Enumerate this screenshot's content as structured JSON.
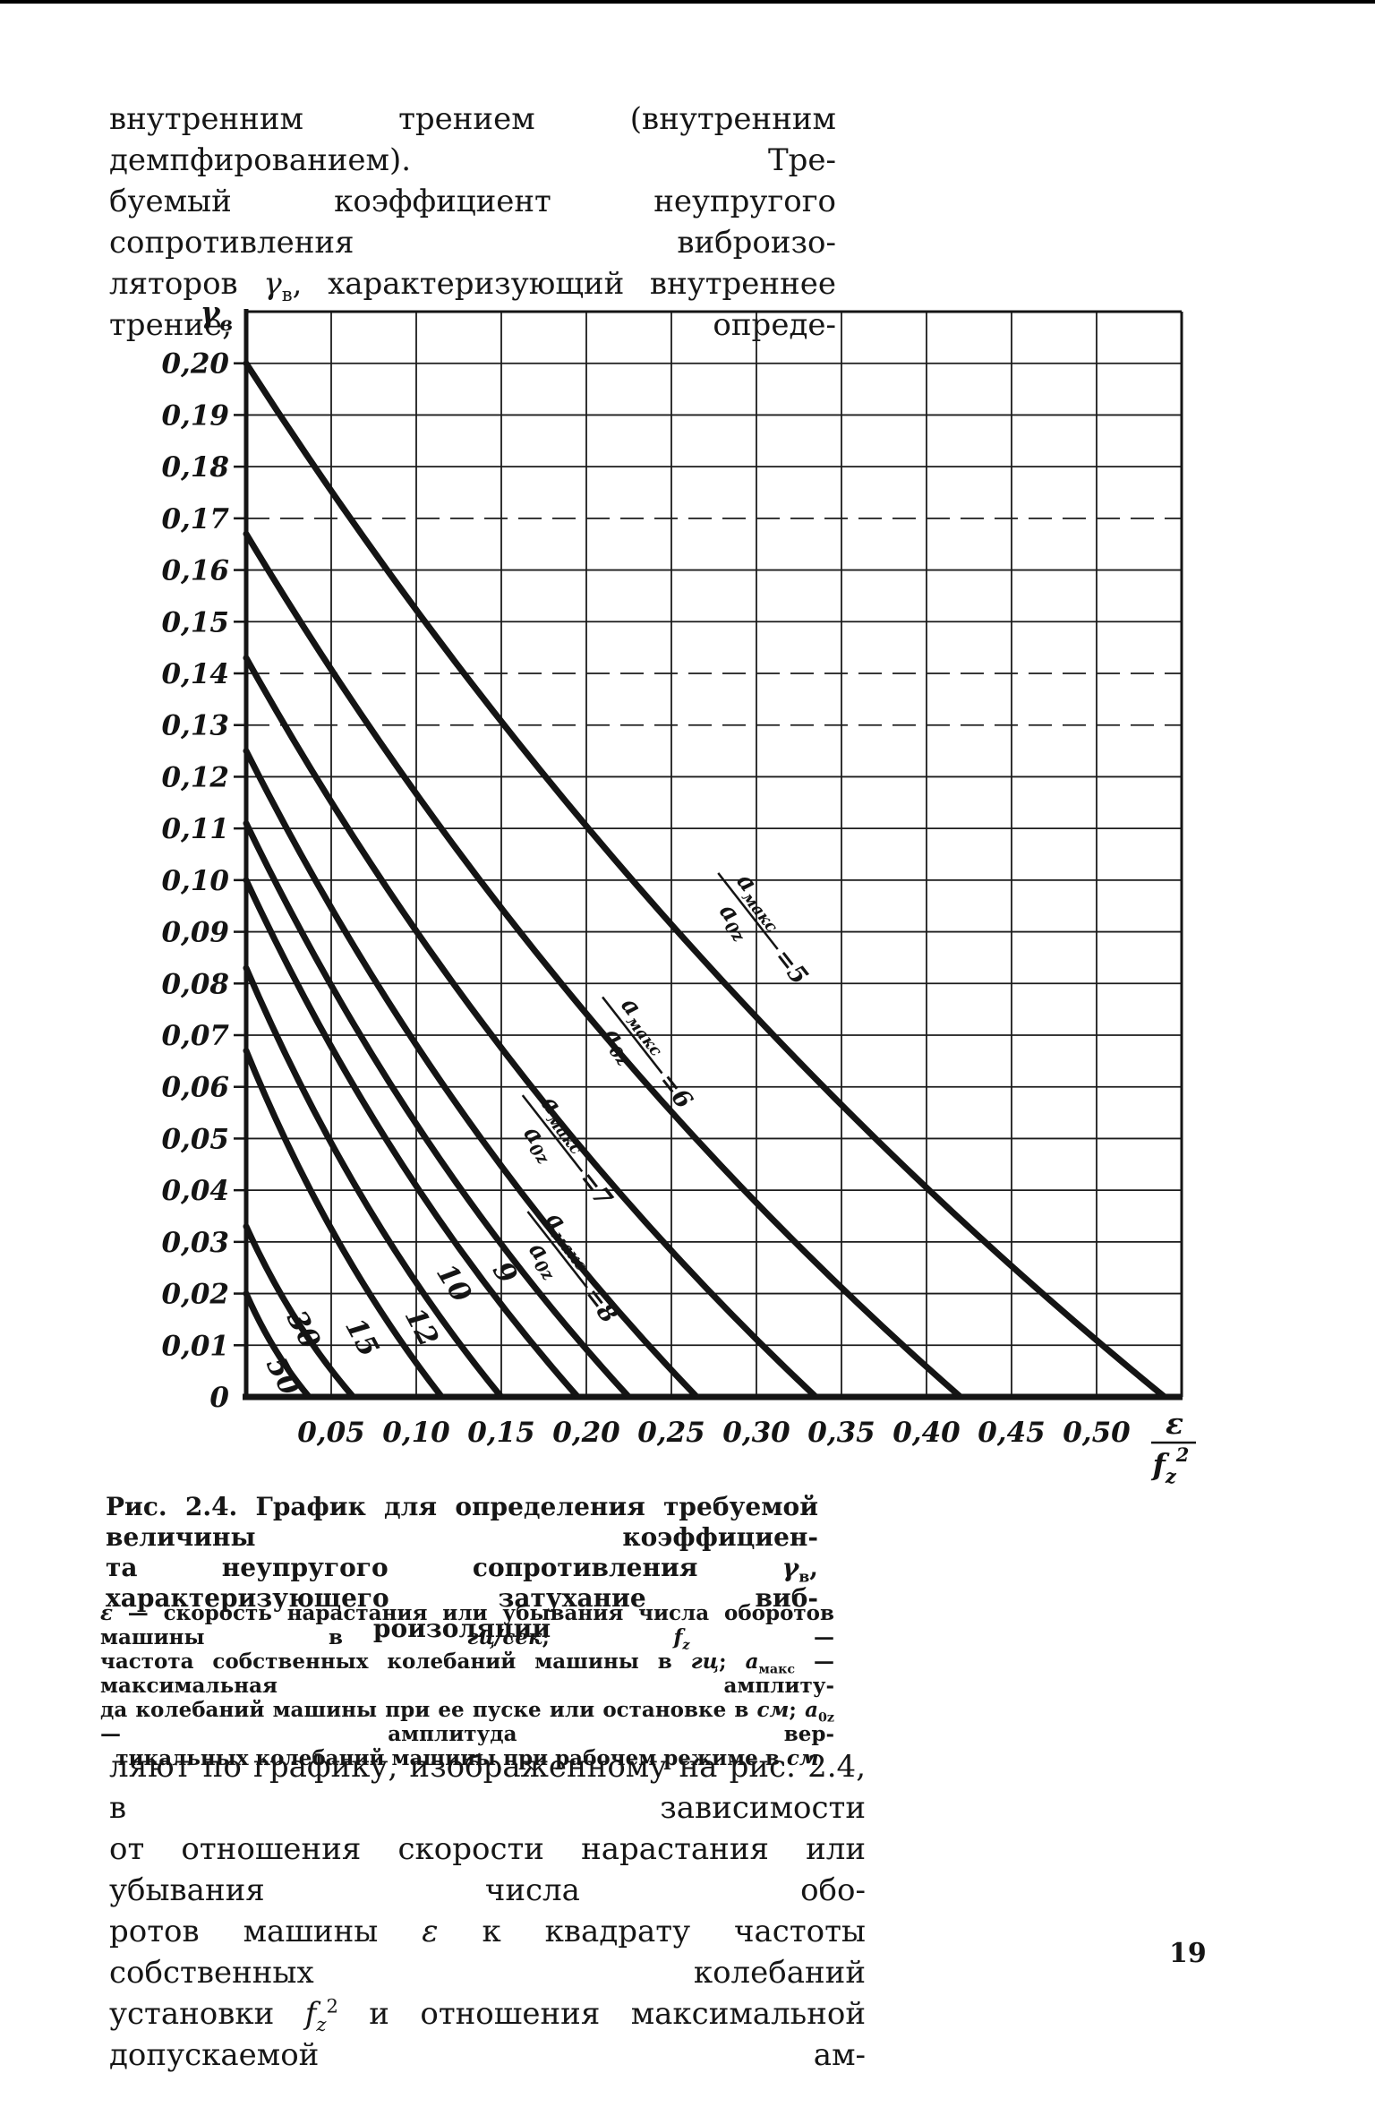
{
  "page": {
    "number": "19"
  },
  "paragraph_top": {
    "lines": [
      [
        {
          "t": "внутренним трением (внутренним демпфированием). Тре-"
        }
      ],
      [
        {
          "t": "буемый коэффициент неупругого сопротивления виброизо-"
        }
      ],
      [
        {
          "t": "ляторов "
        },
        {
          "t": "γ",
          "i": true
        },
        {
          "t": "в",
          "sub": true
        },
        {
          "t": ", характеризующий внутреннее трение, опреде-"
        }
      ]
    ]
  },
  "figure_caption": {
    "lines": [
      [
        {
          "t": "Рис. 2.4. График для определения требуемой величины коэффициен-"
        }
      ],
      [
        {
          "t": "та неупругого сопротивления "
        },
        {
          "t": "γ",
          "i": true
        },
        {
          "t": "в",
          "sub": true
        },
        {
          "t": ", характеризующего затухание виб-"
        }
      ],
      [
        {
          "t": "роизоляции"
        }
      ]
    ]
  },
  "figure_legend": {
    "lines": [
      [
        {
          "t": "ε",
          "i": true
        },
        {
          "t": " — скорость нарастания или убывания числа оборотов машины в "
        },
        {
          "t": "гц/сек",
          "i": true
        },
        {
          "t": "; "
        },
        {
          "t": "f",
          "i": true
        },
        {
          "t": "z",
          "sub": true,
          "i": true
        },
        {
          "t": " —"
        }
      ],
      [
        {
          "t": "частота собственных колебаний машины в "
        },
        {
          "t": "гц",
          "i": true
        },
        {
          "t": "; "
        },
        {
          "t": "а",
          "i": true
        },
        {
          "t": "макс",
          "sub": true
        },
        {
          "t": " — максимальная амплиту-"
        }
      ],
      [
        {
          "t": "да колебаний машины при ее пуске или остановке в "
        },
        {
          "t": "см",
          "i": true
        },
        {
          "t": "; "
        },
        {
          "t": "а",
          "i": true
        },
        {
          "t": "0z",
          "sub": true
        },
        {
          "t": " — амплитуда вер-"
        }
      ],
      [
        {
          "t": "тикальных колебаний машины при рабочем режиме в "
        },
        {
          "t": "см",
          "i": true
        }
      ]
    ]
  },
  "paragraph_bottom": {
    "lines": [
      [
        {
          "t": "ляют по графику, изображенному на рис. 2.4, в зависимости"
        }
      ],
      [
        {
          "t": "от отношения скорости нарастания или убывания числа обо-"
        }
      ],
      [
        {
          "t": "ротов машины "
        },
        {
          "t": "ε",
          "i": true
        },
        {
          "t": " к квадрату частоты собственных колебаний"
        }
      ],
      [
        {
          "t": "установки "
        },
        {
          "t": "f",
          "i": true
        },
        {
          "t": "z",
          "sub": true,
          "i": true
        },
        {
          "t": "2",
          "sup": true
        },
        {
          "t": " и отношения максимальной допускаемой ам-"
        }
      ]
    ]
  },
  "chart_data": {
    "type": "line",
    "title": "Рис. 2.4. График для определения требуемой величины коэффициента неупругого сопротивления γв",
    "ylabel": {
      "base": "γ",
      "sub": "в"
    },
    "xlabel": {
      "num": "ε",
      "den_base": "f",
      "den_sub": "z",
      "den_sup": "2"
    },
    "xlim": [
      0,
      0.55
    ],
    "ylim": [
      0,
      0.21
    ],
    "grid": true,
    "x_tick_values": [
      0.05,
      0.1,
      0.15,
      0.2,
      0.25,
      0.3,
      0.35,
      0.4,
      0.45,
      0.5
    ],
    "x_tick_labels": [
      "0,05",
      "0,10",
      "0,15",
      "0,20",
      "0,25",
      "0,30",
      "0,35",
      "0,40",
      "0,45",
      "0,50"
    ],
    "y_tick_values": [
      0.01,
      0.02,
      0.03,
      0.04,
      0.05,
      0.06,
      0.07,
      0.08,
      0.09,
      0.1,
      0.11,
      0.12,
      0.13,
      0.14,
      0.15,
      0.16,
      0.17,
      0.18,
      0.19,
      0.2
    ],
    "y_tick_labels": [
      "0,01",
      "0,02",
      "0,03",
      "0,04",
      "0,05",
      "0,06",
      "0,07",
      "0,08",
      "0,09",
      "0,10",
      "0,11",
      "0,12",
      "0,13",
      "0,14",
      "0,15",
      "0,16",
      "0,17",
      "0,18",
      "0,19",
      "0,20"
    ],
    "origin_label": "0",
    "dashed_y_gridlines": [
      0.13,
      0.14,
      0.17
    ],
    "series": [
      {
        "name": "амакс/а0z=5",
        "ratio": 5,
        "y_intercept": 0.2,
        "x_intercept": 0.54,
        "points": [
          [
            0,
            0.2
          ],
          [
            0.249,
            0.092
          ],
          [
            0.54,
            0
          ]
        ]
      },
      {
        "name": "амакс/а0z=6",
        "ratio": 6,
        "y_intercept": 0.167,
        "x_intercept": 0.42,
        "points": [
          [
            0,
            0.167
          ],
          [
            0.193,
            0.077
          ],
          [
            0.42,
            0
          ]
        ]
      },
      {
        "name": "амакс/а0z=7",
        "ratio": 7,
        "y_intercept": 0.143,
        "x_intercept": 0.335,
        "points": [
          [
            0,
            0.143
          ],
          [
            0.154,
            0.066
          ],
          [
            0.335,
            0
          ]
        ]
      },
      {
        "name": "амакс/а0z=8",
        "ratio": 8,
        "y_intercept": 0.125,
        "x_intercept": 0.265,
        "points": [
          [
            0,
            0.125
          ],
          [
            0.122,
            0.058
          ],
          [
            0.265,
            0
          ]
        ]
      },
      {
        "name": "амакс/а0z=9",
        "ratio": 9,
        "y_intercept": 0.111,
        "x_intercept": 0.225,
        "points": [
          [
            0,
            0.111
          ],
          [
            0.104,
            0.051
          ],
          [
            0.225,
            0
          ]
        ]
      },
      {
        "name": "амакс/а0z=10",
        "ratio": 10,
        "y_intercept": 0.1,
        "x_intercept": 0.195,
        "points": [
          [
            0,
            0.1
          ],
          [
            0.09,
            0.046
          ],
          [
            0.195,
            0
          ]
        ]
      },
      {
        "name": "амакс/а0z=12",
        "ratio": 12,
        "y_intercept": 0.083,
        "x_intercept": 0.15,
        "points": [
          [
            0,
            0.083
          ],
          [
            0.069,
            0.038
          ],
          [
            0.15,
            0
          ]
        ]
      },
      {
        "name": "амакс/а0z=15",
        "ratio": 15,
        "y_intercept": 0.067,
        "x_intercept": 0.115,
        "points": [
          [
            0,
            0.067
          ],
          [
            0.053,
            0.031
          ],
          [
            0.115,
            0
          ]
        ]
      },
      {
        "name": "амакс/а0z=30",
        "ratio": 30,
        "y_intercept": 0.033,
        "x_intercept": 0.063,
        "points": [
          [
            0,
            0.033
          ],
          [
            0.029,
            0.015
          ],
          [
            0.063,
            0
          ]
        ]
      },
      {
        "name": "амакс/а0z=50",
        "ratio": 50,
        "y_intercept": 0.02,
        "x_intercept": 0.037,
        "points": [
          [
            0,
            0.02
          ],
          [
            0.017,
            0.009
          ],
          [
            0.037,
            0
          ]
        ]
      }
    ],
    "curve_labels": [
      {
        "type": "fraction",
        "num_main": "а",
        "num_sub": "макс",
        "den_main": "а",
        "den_sub": "0z",
        "eq": "=5",
        "x": 0.295,
        "y": 0.094,
        "rot": 52
      },
      {
        "type": "fraction",
        "num_main": "а",
        "num_sub": "макс",
        "den_main": "а",
        "den_sub": "0z",
        "eq": "=6",
        "x": 0.227,
        "y": 0.07,
        "rot": 52
      },
      {
        "type": "fraction",
        "num_main": "а",
        "num_sub": "макс",
        "den_main": "а",
        "den_sub": "0z",
        "eq": "=7",
        "x": 0.18,
        "y": 0.051,
        "rot": 52
      },
      {
        "type": "fraction",
        "num_main": "а",
        "num_sub": "макс",
        "den_main": "а",
        "den_sub": "0z",
        "eq": "=8",
        "x": 0.183,
        "y": 0.0285,
        "rot": 52
      },
      {
        "type": "number",
        "text": "9",
        "x": 0.152,
        "y": 0.024,
        "rot": 58
      },
      {
        "type": "number",
        "text": "10",
        "x": 0.122,
        "y": 0.022,
        "rot": 58
      },
      {
        "type": "number",
        "text": "12",
        "x": 0.103,
        "y": 0.0135,
        "rot": 62
      },
      {
        "type": "number",
        "text": "15",
        "x": 0.068,
        "y": 0.0115,
        "rot": 62
      },
      {
        "type": "number",
        "text": "30",
        "x": 0.0335,
        "y": 0.013,
        "rot": 62
      },
      {
        "type": "number",
        "text": "50",
        "x": 0.0215,
        "y": 0.004,
        "rot": 62
      }
    ]
  }
}
